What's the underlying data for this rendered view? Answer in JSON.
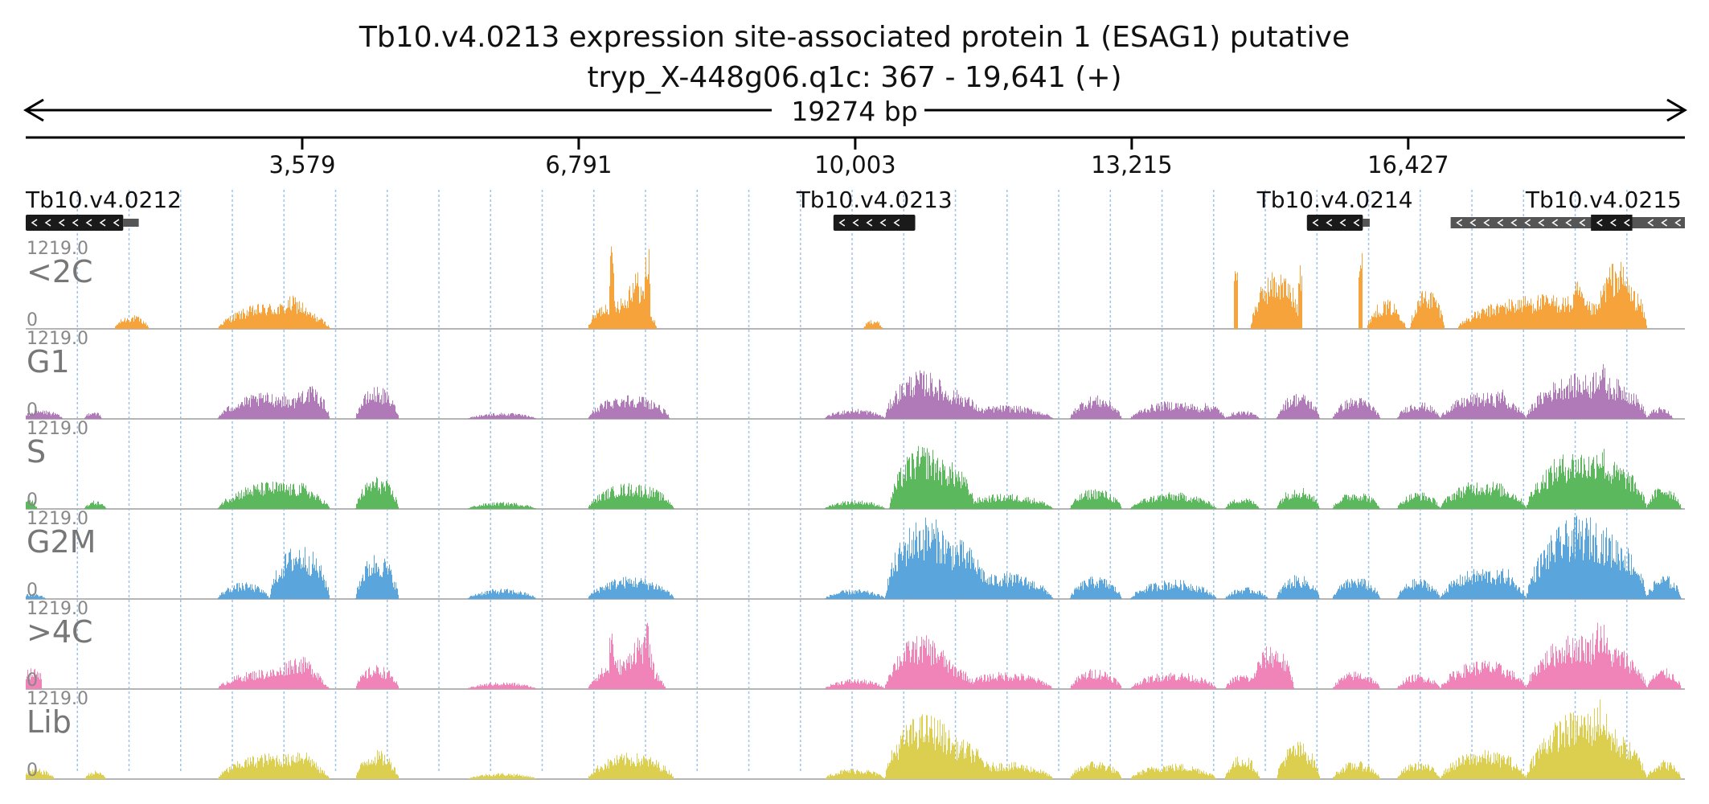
{
  "title_line1": "Tb10.v4.0213  expression site-associated protein 1 (ESAG1)  putative",
  "title_line2": "tryp_X-448g06.q1c: 367 - 19,641 (+)",
  "span_label": "19274 bp",
  "colors": {
    "gene_fill": "#1a1a1a",
    "utr_fill": "#555555",
    "grid_line": "#9ec3ea",
    "axis": "#000000"
  },
  "chart_data": [
    {
      "type": "area",
      "title": "",
      "x_range": [
        367,
        19641
      ],
      "x_ticks": [
        3579,
        6791,
        10003,
        13215,
        16427
      ],
      "x_tick_labels": [
        "3,579",
        "6,791",
        "10,003",
        "13,215",
        "16,427"
      ],
      "grid_positions": [
        967,
        1567,
        2167,
        2767,
        3367,
        3967,
        4567,
        5167,
        5767,
        6367,
        6967,
        7567,
        8167,
        8767,
        9367,
        9967,
        10567,
        11167,
        11767,
        12367,
        12967,
        13567,
        14167,
        14767,
        15367,
        15967,
        16567,
        17167,
        17767,
        18367,
        18967
      ],
      "genes": [
        {
          "name": "Tb10.v4.0212",
          "strand": "-",
          "start": 367,
          "end": 1500,
          "utr_end": 1680
        },
        {
          "name": "Tb10.v4.0213",
          "strand": "-",
          "start": 9750,
          "end": 10700
        },
        {
          "name": "Tb10.v4.0214",
          "strand": "-",
          "start": 15250,
          "end": 15900,
          "utr_end": 15980
        },
        {
          "name": "Tb10.v4.0215",
          "strand": "-",
          "start": 16920,
          "end": 19641,
          "cds_start": 18550,
          "cds_end": 19030
        }
      ],
      "tracks": [
        {
          "name": "<2C",
          "ymax": "1219.0",
          "ymin": "0",
          "color": "#f5a33a",
          "peaks": [
            [
              1400,
              1800,
              200
            ],
            [
              2600,
              3900,
              380
            ],
            [
              3250,
              3700,
              480
            ],
            [
              6900,
              7700,
              500
            ],
            [
              7300,
              7600,
              850
            ],
            [
              7150,
              7200,
              1200
            ],
            [
              7560,
              7620,
              1200
            ],
            [
              10100,
              10320,
              140
            ],
            [
              14600,
              15200,
              850
            ],
            [
              14400,
              14450,
              1200
            ],
            [
              15150,
              15200,
              1200
            ],
            [
              15850,
              15900,
              1200
            ],
            [
              15950,
              16400,
              420
            ],
            [
              16450,
              16850,
              600
            ],
            [
              17000,
              19000,
              500
            ],
            [
              18600,
              19100,
              1000
            ],
            [
              18300,
              18500,
              700
            ],
            [
              17300,
              17700,
              380
            ],
            [
              18850,
              19200,
              600
            ]
          ]
        },
        {
          "name": "G1",
          "ymax": "1219.0",
          "ymin": "0",
          "color": "#b07ab8",
          "peaks": [
            [
              300,
              800,
              130
            ],
            [
              1050,
              1250,
              120
            ],
            [
              2600,
              3800,
              380
            ],
            [
              3400,
              3900,
              480
            ],
            [
              4200,
              4700,
              470
            ],
            [
              5500,
              6300,
              90
            ],
            [
              6900,
              7850,
              360
            ],
            [
              7400,
              7800,
              300
            ],
            [
              9650,
              10350,
              150
            ],
            [
              10350,
              11200,
              700
            ],
            [
              10600,
              11500,
              450
            ],
            [
              11200,
              12300,
              200
            ],
            [
              12500,
              13100,
              340
            ],
            [
              13200,
              14200,
              260
            ],
            [
              13900,
              14300,
              230
            ],
            [
              14300,
              14700,
              120
            ],
            [
              14900,
              15400,
              380
            ],
            [
              15550,
              16100,
              320
            ],
            [
              16300,
              16800,
              250
            ],
            [
              16800,
              17800,
              380
            ],
            [
              17400,
              17600,
              450
            ],
            [
              17800,
              19000,
              650
            ],
            [
              18500,
              18800,
              850
            ],
            [
              18300,
              19200,
              600
            ],
            [
              19200,
              19500,
              170
            ]
          ]
        },
        {
          "name": "S",
          "ymax": "1219.0",
          "ymin": "0",
          "color": "#5cb85c",
          "peaks": [
            [
              300,
              500,
              150
            ],
            [
              1050,
              1300,
              120
            ],
            [
              2600,
              3900,
              400
            ],
            [
              3300,
              3800,
              380
            ],
            [
              4200,
              4700,
              470
            ],
            [
              5500,
              6300,
              100
            ],
            [
              6900,
              7900,
              380
            ],
            [
              7400,
              7800,
              300
            ],
            [
              9650,
              10350,
              130
            ],
            [
              10400,
              11200,
              920
            ],
            [
              10700,
              11400,
              700
            ],
            [
              11200,
              12300,
              220
            ],
            [
              12500,
              13100,
              300
            ],
            [
              13200,
              14200,
              240
            ],
            [
              14300,
              14700,
              170
            ],
            [
              14900,
              15400,
              330
            ],
            [
              15550,
              16100,
              260
            ],
            [
              16300,
              16800,
              250
            ],
            [
              16800,
              17800,
              420
            ],
            [
              17300,
              17600,
              300
            ],
            [
              17800,
              19000,
              850
            ],
            [
              18500,
              18800,
              1000
            ],
            [
              18300,
              19200,
              700
            ],
            [
              19200,
              19600,
              350
            ]
          ]
        },
        {
          "name": "G2M",
          "ymax": "1219.0",
          "ymin": "0",
          "color": "#5aa5dc",
          "peaks": [
            [
              300,
              600,
              80
            ],
            [
              2600,
              3200,
              240
            ],
            [
              3200,
              3900,
              800
            ],
            [
              3600,
              3700,
              700
            ],
            [
              4200,
              4700,
              670
            ],
            [
              5500,
              6300,
              150
            ],
            [
              6900,
              7900,
              330
            ],
            [
              7400,
              7800,
              280
            ],
            [
              9650,
              10350,
              140
            ],
            [
              10350,
              11300,
              1200
            ],
            [
              10600,
              11600,
              900
            ],
            [
              11200,
              12300,
              380
            ],
            [
              12500,
              13100,
              330
            ],
            [
              13200,
              14200,
              280
            ],
            [
              14300,
              14800,
              170
            ],
            [
              14900,
              15400,
              350
            ],
            [
              15550,
              16100,
              320
            ],
            [
              16300,
              16800,
              300
            ],
            [
              16800,
              17800,
              450
            ],
            [
              17400,
              17700,
              450
            ],
            [
              17800,
              19100,
              1200
            ],
            [
              18300,
              19200,
              950
            ],
            [
              19200,
              19600,
              350
            ]
          ]
        },
        {
          "name": ">4C",
          "ymax": "1219.0",
          "ymin": "0",
          "color": "#f083b7",
          "peaks": [
            [
              367,
              550,
              300
            ],
            [
              2600,
              3900,
              300
            ],
            [
              3200,
              3850,
              480
            ],
            [
              4200,
              4700,
              350
            ],
            [
              5500,
              6300,
              100
            ],
            [
              6900,
              7800,
              450
            ],
            [
              7300,
              7700,
              800
            ],
            [
              7150,
              7200,
              900
            ],
            [
              7560,
              7620,
              950
            ],
            [
              9650,
              10350,
              150
            ],
            [
              10350,
              11200,
              780
            ],
            [
              10600,
              11400,
              420
            ],
            [
              11200,
              12300,
              250
            ],
            [
              12500,
              13100,
              300
            ],
            [
              13200,
              14200,
              250
            ],
            [
              14300,
              14700,
              220
            ],
            [
              14600,
              15100,
              650
            ],
            [
              15550,
              16100,
              260
            ],
            [
              16300,
              16800,
              220
            ],
            [
              16800,
              17800,
              420
            ],
            [
              17800,
              19000,
              800
            ],
            [
              18500,
              18800,
              1050
            ],
            [
              18300,
              19200,
              650
            ],
            [
              19200,
              19600,
              300
            ]
          ]
        },
        {
          "name": "Lib",
          "ymax": "1219.0",
          "ymin": "0",
          "color": "#dccf4f",
          "peaks": [
            [
              300,
              700,
              150
            ],
            [
              1050,
              1300,
              120
            ],
            [
              2600,
              3900,
              380
            ],
            [
              3300,
              3800,
              450
            ],
            [
              4200,
              4700,
              420
            ],
            [
              5500,
              6300,
              90
            ],
            [
              6900,
              7900,
              380
            ],
            [
              7400,
              7800,
              280
            ],
            [
              9650,
              10350,
              160
            ],
            [
              10350,
              11300,
              950
            ],
            [
              10700,
              11600,
              600
            ],
            [
              11200,
              12300,
              250
            ],
            [
              12500,
              13100,
              270
            ],
            [
              13200,
              14200,
              230
            ],
            [
              14300,
              14700,
              350
            ],
            [
              14900,
              15400,
              550
            ],
            [
              15550,
              16100,
              260
            ],
            [
              16300,
              16800,
              250
            ],
            [
              16800,
              17800,
              420
            ],
            [
              17400,
              17700,
              380
            ],
            [
              17800,
              19100,
              1000
            ],
            [
              18500,
              18800,
              1200
            ],
            [
              18300,
              19200,
              700
            ],
            [
              19200,
              19600,
              280
            ]
          ]
        }
      ]
    }
  ]
}
